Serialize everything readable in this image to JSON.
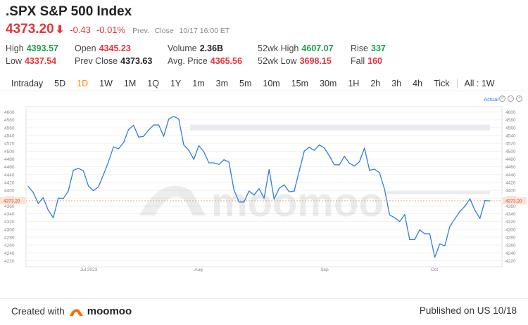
{
  "header": {
    "title": ".SPX S&P 500 Index",
    "price": "4373.20",
    "change": "-0.43",
    "change_pct": "-0.01%",
    "status_prefix": "Prev.",
    "status_label": "Close",
    "status_time": "10/17 16:00 ET"
  },
  "stats": {
    "high_label": "High",
    "high": "4393.57",
    "low_label": "Low",
    "low": "4337.54",
    "open_label": "Open",
    "open": "4345.23",
    "prev_close_label": "Prev Close",
    "prev_close": "4373.63",
    "volume_label": "Volume",
    "volume": "2.36B",
    "avg_price_label": "Avg. Price",
    "avg_price": "4365.56",
    "wk52_high_label": "52wk High",
    "wk52_high": "4607.07",
    "wk52_low_label": "52wk Low",
    "wk52_low": "3698.15",
    "rise_label": "Rise",
    "rise": "337",
    "fall_label": "Fall",
    "fall": "160"
  },
  "tabs": [
    {
      "label": "Intraday"
    },
    {
      "label": "5D"
    },
    {
      "label": "1D"
    },
    {
      "label": "1W"
    },
    {
      "label": "1M"
    },
    {
      "label": "1Q"
    },
    {
      "label": "1Y"
    },
    {
      "label": "1m"
    },
    {
      "label": "3m"
    },
    {
      "label": "5m"
    },
    {
      "label": "10m"
    },
    {
      "label": "15m"
    },
    {
      "label": "30m"
    },
    {
      "label": "1H"
    },
    {
      "label": "2h"
    },
    {
      "label": "3h"
    },
    {
      "label": "4h"
    },
    {
      "label": "Tick"
    },
    {
      "label": "All : 1W"
    }
  ],
  "active_tab": "1D",
  "chart_toolbar": {
    "actual_label": "Actual"
  },
  "watermark": "moomoo",
  "colors": {
    "line": "#2b7de9",
    "up": "#1aa34a",
    "down": "#e5343a",
    "active_tab": "#ff8a00",
    "price_line": "#f5a05a"
  },
  "chart_data": {
    "type": "line",
    "x_ticks": [
      "Jul 2023",
      "Aug",
      "Sep",
      "Oct"
    ],
    "y_ticks": [
      4220,
      4240,
      4260,
      4280,
      4300,
      4320,
      4340,
      4360,
      4380,
      4400,
      4420,
      4440,
      4460,
      4480,
      4500,
      4520,
      4540,
      4560,
      4580,
      4600
    ],
    "ylim": [
      4210,
      4610
    ],
    "current_price_label": "4373.20",
    "current_price": 4373.2,
    "series": [
      {
        "values": [
          4410,
          4395,
          4366,
          4381,
          4349,
          4330,
          4380,
          4379,
          4398,
          4451,
          4456,
          4450,
          4411,
          4399,
          4409,
          4440,
          4473,
          4511,
          4506,
          4522,
          4555,
          4566,
          4536,
          4538,
          4554,
          4567,
          4567,
          4538,
          4582,
          4589,
          4582,
          4516,
          4502,
          4479,
          4514,
          4498,
          4470,
          4470,
          4466,
          4478,
          4472,
          4401,
          4370,
          4370,
          4398,
          4388,
          4404,
          4380,
          4453,
          4377,
          4405,
          4414,
          4396,
          4398,
          4449,
          4500,
          4510,
          4502,
          4516,
          4508,
          4488,
          4465,
          4465,
          4487,
          4469,
          4462,
          4473,
          4508,
          4451,
          4454,
          4445,
          4402,
          4337,
          4330,
          4320,
          4338,
          4274,
          4274,
          4299,
          4289,
          4289,
          4229,
          4263,
          4258,
          4308,
          4327,
          4346,
          4359,
          4378,
          4349,
          4328,
          4374,
          4373
        ]
      }
    ]
  }
}
